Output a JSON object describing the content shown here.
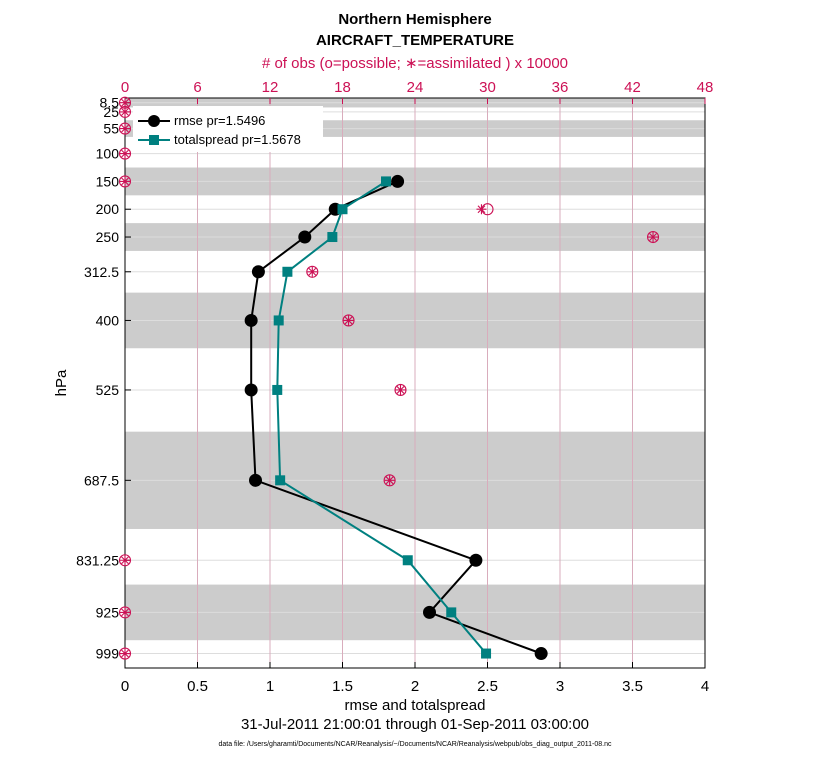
{
  "chart_data": {
    "type": "line",
    "title": "Northern Hemisphere",
    "subtitle": "AIRCRAFT_TEMPERATURE",
    "xlabel": "rmse and totalspread",
    "ylabel": "hPa",
    "top_xlabel": "# of obs (o=possible; ∗=assimilated ) x 10000",
    "date_range": "31-Jul-2011 21:00:01 through 01-Sep-2011 03:00:00",
    "footnote": "data file: /Users/gharamti/Documents/NCAR/Reanalysis/~/Documents/NCAR/Reanalysis/webpub/obs_diag_output_2011-08.nc",
    "xlim": [
      0,
      4
    ],
    "xticks": [
      0,
      0.5,
      1,
      1.5,
      2,
      2.5,
      3,
      3.5,
      4
    ],
    "xtick_labels": [
      "0",
      "0.5",
      "1",
      "1.5",
      "2",
      "2.5",
      "3",
      "3.5",
      "4"
    ],
    "top_xlim": [
      0,
      48
    ],
    "top_xticks": [
      0,
      6,
      12,
      18,
      24,
      30,
      36,
      42,
      48
    ],
    "top_xtick_labels": [
      "0",
      "6",
      "12",
      "18",
      "24",
      "30",
      "36",
      "42",
      "48"
    ],
    "ylim_hpa": [
      1025,
      0
    ],
    "levels": [
      8.5,
      25,
      55,
      100,
      150,
      200,
      250,
      312.5,
      400,
      525,
      687.5,
      831.25,
      925,
      999
    ],
    "level_labels": [
      "8.5",
      "25",
      "55",
      "100",
      "150",
      "200",
      "250",
      "312.5",
      "400",
      "525",
      "687.5",
      "831.25",
      "925",
      "999"
    ],
    "shaded_bands_hpa": [
      [
        0,
        17
      ],
      [
        40,
        70
      ],
      [
        125,
        175
      ],
      [
        225,
        275
      ],
      [
        350,
        450
      ],
      [
        600,
        775
      ],
      [
        875,
        975
      ]
    ],
    "legend_position": "top-left",
    "series": [
      {
        "name": "rmse pr=1.5496",
        "color": "#000000",
        "marker": "circle",
        "points": [
          {
            "pressure": 150,
            "value": 1.88
          },
          {
            "pressure": 200,
            "value": 1.45
          },
          {
            "pressure": 250,
            "value": 1.24
          },
          {
            "pressure": 312.5,
            "value": 0.92
          },
          {
            "pressure": 400,
            "value": 0.87
          },
          {
            "pressure": 525,
            "value": 0.87
          },
          {
            "pressure": 687.5,
            "value": 0.9
          },
          {
            "pressure": 831.25,
            "value": 2.42
          },
          {
            "pressure": 925,
            "value": 2.1
          },
          {
            "pressure": 999,
            "value": 2.87
          }
        ]
      },
      {
        "name": "totalspread pr=1.5678",
        "color": "#008080",
        "marker": "square",
        "points": [
          {
            "pressure": 150,
            "value": 1.8
          },
          {
            "pressure": 200,
            "value": 1.5
          },
          {
            "pressure": 250,
            "value": 1.43
          },
          {
            "pressure": 312.5,
            "value": 1.12
          },
          {
            "pressure": 400,
            "value": 1.06
          },
          {
            "pressure": 525,
            "value": 1.05
          },
          {
            "pressure": 687.5,
            "value": 1.07
          },
          {
            "pressure": 831.25,
            "value": 1.95
          },
          {
            "pressure": 925,
            "value": 2.25
          },
          {
            "pressure": 999,
            "value": 2.49
          }
        ]
      }
    ],
    "obs_counts": {
      "color": "#cc1155",
      "unit": "x 10000",
      "points": [
        {
          "pressure": 8.5,
          "possible": 0,
          "assimilated": 0
        },
        {
          "pressure": 25,
          "possible": 0,
          "assimilated": 0
        },
        {
          "pressure": 55,
          "possible": 0,
          "assimilated": 0
        },
        {
          "pressure": 100,
          "possible": 0,
          "assimilated": 0
        },
        {
          "pressure": 150,
          "possible": 0,
          "assimilated": 0
        },
        {
          "pressure": 200,
          "possible": 30,
          "assimilated": 29.5
        },
        {
          "pressure": 250,
          "possible": 43.7,
          "assimilated": 43.7
        },
        {
          "pressure": 312.5,
          "possible": 15.5,
          "assimilated": 15.5
        },
        {
          "pressure": 400,
          "possible": 18.5,
          "assimilated": 18.5
        },
        {
          "pressure": 525,
          "possible": 22.8,
          "assimilated": 22.8
        },
        {
          "pressure": 687.5,
          "possible": 21.9,
          "assimilated": 21.9
        },
        {
          "pressure": 831.25,
          "possible": 0,
          "assimilated": 0
        },
        {
          "pressure": 925,
          "possible": 0,
          "assimilated": 0
        },
        {
          "pressure": 999,
          "possible": 0,
          "assimilated": 0
        }
      ]
    },
    "colors": {
      "band": "#cccccc",
      "top_axis": "#cc1155",
      "grid": "#dddddd",
      "top_grid": "#d9a0b5"
    }
  }
}
